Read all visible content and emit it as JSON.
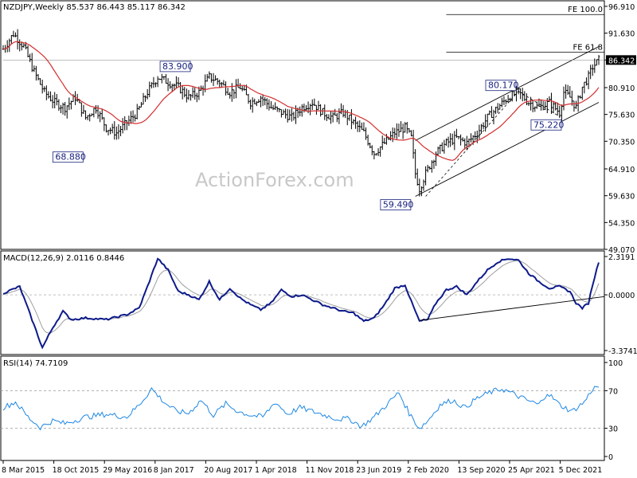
{
  "chart_data": [
    {
      "type": "candlestick",
      "panel": "price",
      "header": "NZDJPY,Weekly  85.537 86.443 85.117 86.342",
      "last_price": "86.342",
      "y_ticks": [
        "96.910",
        "91.630",
        "86.342",
        "80.910",
        "75.630",
        "70.350",
        "64.910",
        "59.630",
        "54.350",
        "49.070"
      ],
      "ylim": [
        49.07,
        98.0
      ],
      "x_ticks": [
        "8 Mar 2015",
        "18 Oct 2015",
        "29 May 2016",
        "8 Jan 2017",
        "20 Aug 2017",
        "1 Apr 2018",
        "11 Nov 2018",
        "23 Jun 2019",
        "2 Feb 2020",
        "13 Sep 2020",
        "25 Apr 2021",
        "5 Dec 2021"
      ],
      "fib_levels": [
        {
          "label": "FE 100.0",
          "value": 95.3
        },
        {
          "label": "FE 61.8",
          "value": 87.9
        }
      ],
      "annotations": [
        {
          "label": "83.900",
          "value": 83.9
        },
        {
          "label": "68.880",
          "value": 68.88
        },
        {
          "label": "80.170",
          "value": 80.17
        },
        {
          "label": "75.220",
          "value": 75.22
        },
        {
          "label": "59.490",
          "value": 59.49
        }
      ],
      "watermark": "ActionForex.com",
      "close_anchors": [
        [
          0,
          88.5
        ],
        [
          5,
          91.5
        ],
        [
          10,
          89
        ],
        [
          15,
          84
        ],
        [
          20,
          80
        ],
        [
          25,
          78
        ],
        [
          30,
          77
        ],
        [
          35,
          79
        ],
        [
          40,
          75
        ],
        [
          45,
          77
        ],
        [
          50,
          73
        ],
        [
          55,
          72
        ],
        [
          60,
          74
        ],
        [
          65,
          76
        ],
        [
          70,
          80
        ],
        [
          75,
          83
        ],
        [
          80,
          82
        ],
        [
          85,
          81
        ],
        [
          90,
          79
        ],
        [
          95,
          80
        ],
        [
          100,
          83
        ],
        [
          105,
          82
        ],
        [
          110,
          80
        ],
        [
          115,
          81
        ],
        [
          120,
          78
        ],
        [
          125,
          79
        ],
        [
          130,
          77
        ],
        [
          135,
          76
        ],
        [
          140,
          75
        ],
        [
          145,
          77
        ],
        [
          150,
          78
        ],
        [
          155,
          76
        ],
        [
          160,
          75
        ],
        [
          165,
          76
        ],
        [
          170,
          74
        ],
        [
          175,
          72
        ],
        [
          180,
          68
        ],
        [
          185,
          70
        ],
        [
          190,
          72
        ],
        [
          195,
          73
        ],
        [
          198,
          71
        ],
        [
          200,
          64
        ],
        [
          202,
          61
        ],
        [
          205,
          64
        ],
        [
          210,
          68
        ],
        [
          215,
          70
        ],
        [
          220,
          71
        ],
        [
          225,
          70
        ],
        [
          230,
          72
        ],
        [
          235,
          75
        ],
        [
          240,
          77
        ],
        [
          245,
          79
        ],
        [
          250,
          80
        ],
        [
          255,
          78
        ],
        [
          260,
          77
        ],
        [
          265,
          78
        ],
        [
          270,
          76
        ],
        [
          272,
          80
        ],
        [
          275,
          79
        ],
        [
          278,
          77
        ],
        [
          281,
          81
        ],
        [
          284,
          83
        ],
        [
          286,
          85
        ],
        [
          289,
          86.3
        ]
      ]
    },
    {
      "type": "line",
      "panel": "macd",
      "header": "MACD(12,26,9) 2.0116 0.8446",
      "y_ticks": [
        "2.3191",
        "0.0000",
        "-3.3741"
      ],
      "ylim": [
        -3.3741,
        2.3191
      ],
      "anchors": [
        [
          0,
          0.1
        ],
        [
          8,
          0.5
        ],
        [
          14,
          -1.5
        ],
        [
          19,
          -3.2
        ],
        [
          24,
          -2.0
        ],
        [
          29,
          -1.0
        ],
        [
          33,
          -1.5
        ],
        [
          40,
          -1.4
        ],
        [
          50,
          -1.5
        ],
        [
          60,
          -1.2
        ],
        [
          66,
          -0.8
        ],
        [
          70,
          0.5
        ],
        [
          75,
          2.2
        ],
        [
          80,
          1.5
        ],
        [
          85,
          0.2
        ],
        [
          90,
          0.0
        ],
        [
          95,
          -0.3
        ],
        [
          100,
          0.8
        ],
        [
          105,
          -0.3
        ],
        [
          110,
          0.4
        ],
        [
          115,
          -0.2
        ],
        [
          120,
          -0.6
        ],
        [
          125,
          -0.9
        ],
        [
          130,
          -0.5
        ],
        [
          135,
          0.3
        ],
        [
          140,
          -0.1
        ],
        [
          145,
          0.0
        ],
        [
          150,
          -0.3
        ],
        [
          155,
          -0.6
        ],
        [
          160,
          -0.8
        ],
        [
          165,
          -1.0
        ],
        [
          170,
          -1.1
        ],
        [
          175,
          -1.6
        ],
        [
          180,
          -1.4
        ],
        [
          185,
          -0.6
        ],
        [
          190,
          0.4
        ],
        [
          195,
          0.6
        ],
        [
          198,
          -0.4
        ],
        [
          202,
          -1.6
        ],
        [
          206,
          -1.5
        ],
        [
          210,
          -0.5
        ],
        [
          215,
          0.3
        ],
        [
          220,
          0.5
        ],
        [
          225,
          0.0
        ],
        [
          230,
          0.8
        ],
        [
          235,
          1.5
        ],
        [
          240,
          2.0
        ],
        [
          245,
          2.2
        ],
        [
          250,
          2.1
        ],
        [
          255,
          1.3
        ],
        [
          260,
          0.8
        ],
        [
          265,
          0.4
        ],
        [
          270,
          0.5
        ],
        [
          275,
          0.2
        ],
        [
          278,
          -0.5
        ],
        [
          281,
          -0.8
        ],
        [
          284,
          -0.5
        ],
        [
          286,
          0.6
        ],
        [
          289,
          2.01
        ]
      ],
      "signal_value": 0.8446,
      "trendline": [
        [
          202,
          -1.55
        ],
        [
          289,
          -0.3
        ]
      ]
    },
    {
      "type": "line",
      "panel": "rsi",
      "header": "RSI(14) 74.7109",
      "y_ticks": [
        "100",
        "70",
        "30",
        "0"
      ],
      "ylim": [
        0,
        100
      ],
      "levels": [
        70,
        30
      ],
      "anchors": [
        [
          0,
          52
        ],
        [
          6,
          58
        ],
        [
          12,
          42
        ],
        [
          18,
          31
        ],
        [
          24,
          38
        ],
        [
          30,
          35
        ],
        [
          40,
          42
        ],
        [
          50,
          45
        ],
        [
          60,
          42
        ],
        [
          66,
          55
        ],
        [
          72,
          72
        ],
        [
          78,
          58
        ],
        [
          84,
          48
        ],
        [
          90,
          46
        ],
        [
          96,
          60
        ],
        [
          102,
          44
        ],
        [
          108,
          56
        ],
        [
          114,
          48
        ],
        [
          120,
          44
        ],
        [
          126,
          42
        ],
        [
          132,
          58
        ],
        [
          138,
          45
        ],
        [
          144,
          52
        ],
        [
          150,
          48
        ],
        [
          156,
          44
        ],
        [
          162,
          40
        ],
        [
          168,
          40
        ],
        [
          174,
          32
        ],
        [
          180,
          42
        ],
        [
          186,
          55
        ],
        [
          192,
          68
        ],
        [
          197,
          46
        ],
        [
          202,
          30
        ],
        [
          206,
          38
        ],
        [
          212,
          55
        ],
        [
          218,
          60
        ],
        [
          224,
          52
        ],
        [
          230,
          62
        ],
        [
          236,
          68
        ],
        [
          242,
          72
        ],
        [
          248,
          66
        ],
        [
          254,
          60
        ],
        [
          260,
          55
        ],
        [
          264,
          68
        ],
        [
          270,
          55
        ],
        [
          276,
          48
        ],
        [
          282,
          58
        ],
        [
          286,
          72
        ],
        [
          289,
          74.7
        ]
      ]
    }
  ]
}
